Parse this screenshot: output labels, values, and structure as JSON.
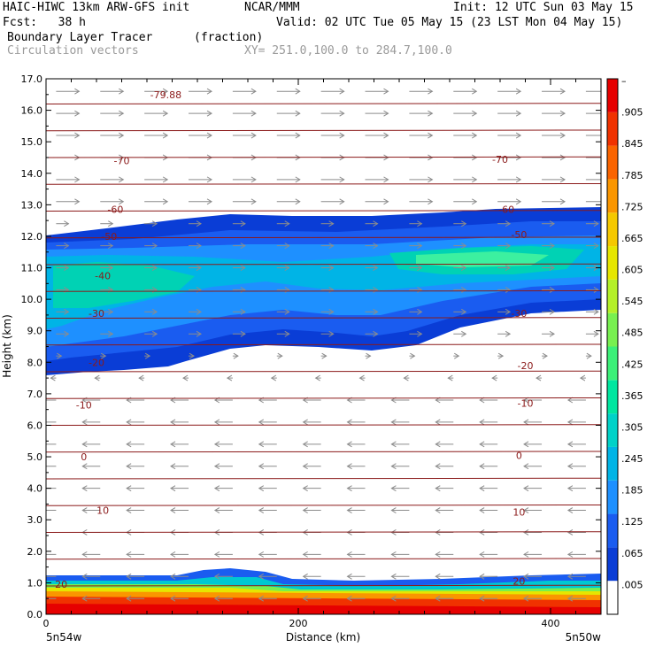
{
  "header": {
    "line1_left": "HAIC-HIWC 13km ARW-GFS init",
    "line1_mid": "NCAR/MMM",
    "line1_right": "Init: 12 UTC Sun 03 May 15",
    "fcst": "Fcst:   38 h",
    "valid": "Valid: 02 UTC Tue 05 May 15 (23 LST Mon 04 May 15)",
    "field1": "Boundary Layer Tracer",
    "field1_units": "(fraction)",
    "field2": "Circulation vectors",
    "xy_range": "XY= 251.0,100.0 to 284.7,100.0"
  },
  "axes": {
    "ylabel": "Height (km)",
    "xlabel": "Distance (km)",
    "x_left_endpoint": "5n54w",
    "x_right_endpoint": "5n50w"
  },
  "colors": {
    "contour_line": "#8b1a1a",
    "vector_arrow": "#8c8c8c",
    "shading_scale": [
      "#ffffff",
      "#0a3dd6",
      "#1a5cf0",
      "#1e90ff",
      "#00b4e6",
      "#00d2c8",
      "#00e6a0",
      "#3cf078",
      "#78f050",
      "#b4f028",
      "#e6e600",
      "#f5c800",
      "#fa9600",
      "#fa6400",
      "#f03200",
      "#e60000"
    ]
  },
  "chart_data": {
    "type": "heatmap",
    "title": "Boundary Layer Tracer",
    "xlabel": "Distance (km)",
    "ylabel": "Height (km)",
    "xlim": [
      0,
      440
    ],
    "ylim": [
      0,
      17
    ],
    "x_ticks": [
      0,
      200,
      400
    ],
    "y_ticks": [
      0.0,
      1.0,
      2.0,
      3.0,
      4.0,
      5.0,
      6.0,
      7.0,
      8.0,
      9.0,
      10.0,
      11.0,
      12.0,
      13.0,
      14.0,
      15.0,
      16.0,
      17.0
    ],
    "y_tick_labels": [
      "0.0",
      "1.0",
      "2.0",
      "3.0",
      "4.0",
      "5.0",
      "6.0",
      "7.0",
      "8.0",
      "9.0",
      "10.0",
      "11.0",
      "12.0",
      "13.0",
      "14.0",
      "15.0",
      "16.0",
      "17.0"
    ],
    "colorbar_labels": [
      ".005",
      ".065",
      ".125",
      ".185",
      ".245",
      ".305",
      ".365",
      ".425",
      ".485",
      ".545",
      ".605",
      ".665",
      ".725",
      ".785",
      ".845",
      ".905",
      "–"
    ],
    "contour_labels": [
      {
        "text": "-79.88",
        "x": 95,
        "y": 16.5
      },
      {
        "text": "-70",
        "x": 60,
        "y": 14.4
      },
      {
        "text": "-70",
        "x": 360,
        "y": 14.45
      },
      {
        "text": "-60",
        "x": 55,
        "y": 12.85
      },
      {
        "text": "-60",
        "x": 365,
        "y": 12.85
      },
      {
        "text": "-50",
        "x": 50,
        "y": 12.0
      },
      {
        "text": "-50",
        "x": 375,
        "y": 12.05
      },
      {
        "text": "-40",
        "x": 45,
        "y": 10.75
      },
      {
        "text": "-30",
        "x": 40,
        "y": 9.55
      },
      {
        "text": "-30",
        "x": 375,
        "y": 9.55
      },
      {
        "text": "-20",
        "x": 40,
        "y": 8.0
      },
      {
        "text": "-20",
        "x": 380,
        "y": 7.9
      },
      {
        "text": "-10",
        "x": 30,
        "y": 6.65
      },
      {
        "text": "-10",
        "x": 380,
        "y": 6.7
      },
      {
        "text": "0",
        "x": 30,
        "y": 5.0
      },
      {
        "text": "0",
        "x": 375,
        "y": 5.05
      },
      {
        "text": "10",
        "x": 45,
        "y": 3.3
      },
      {
        "text": "10",
        "x": 375,
        "y": 3.25
      },
      {
        "text": "20",
        "x": 12,
        "y": 0.95
      },
      {
        "text": "20",
        "x": 375,
        "y": 1.05
      }
    ]
  }
}
